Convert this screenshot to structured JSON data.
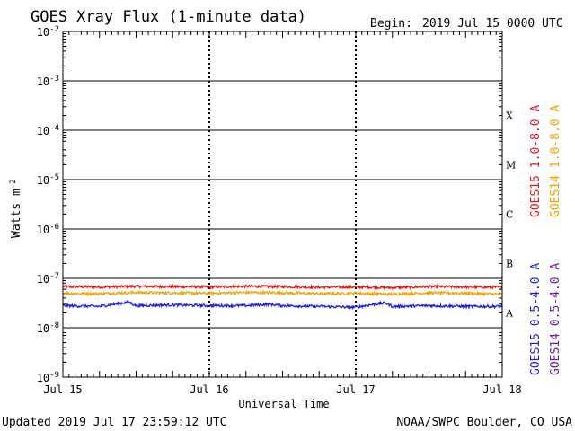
{
  "title": "GOES Xray Flux (1-minute data)",
  "begin_label": "Begin:",
  "begin_value": "2019 Jul 15 0000 UTC",
  "footer_left": "Updated 2019 Jul 17 23:59:12 UTC",
  "footer_right": "NOAA/SWPC Boulder, CO USA",
  "colors": {
    "goes15_long": "#e31a1c",
    "goes14_long": "#f5a300",
    "goes15_short": "#1f1fd6",
    "goes14_short": "#6a1fa0"
  },
  "chart_data": {
    "type": "line",
    "title": "GOES Xray Flux (1-minute data)",
    "xlabel": "Universal Time",
    "ylabel": "Watts m",
    "ylabel_sup": "-2",
    "yscale": "log",
    "ylim": [
      1e-09,
      0.01
    ],
    "xlim": [
      0,
      3
    ],
    "x_unit": "days since 2019 Jul 15 0000 UTC",
    "x_ticks": [
      {
        "x": 0,
        "label": "Jul 15"
      },
      {
        "x": 1,
        "label": "Jul 16"
      },
      {
        "x": 2,
        "label": "Jul 17"
      },
      {
        "x": 3,
        "label": "Jul 18"
      }
    ],
    "y_ticks": [
      {
        "base": "10",
        "exp": "-9"
      },
      {
        "base": "10",
        "exp": "-8"
      },
      {
        "base": "10",
        "exp": "-7"
      },
      {
        "base": "10",
        "exp": "-6"
      },
      {
        "base": "10",
        "exp": "-5"
      },
      {
        "base": "10",
        "exp": "-4"
      },
      {
        "base": "10",
        "exp": "-3"
      },
      {
        "base": "10",
        "exp": "-2"
      }
    ],
    "flare_classes": [
      {
        "label": "X",
        "y": 0.0002
      },
      {
        "label": "M",
        "y": 2e-05
      },
      {
        "label": "C",
        "y": 2e-06
      },
      {
        "label": "B",
        "y": 2e-07
      },
      {
        "label": "A",
        "y": 2e-08
      }
    ],
    "grid": true,
    "legend_placement": "right",
    "series": [
      {
        "name": "GOES15 1.0-8.0 A",
        "color": "#e31a1c",
        "base": 6.8e-08,
        "x": [
          0,
          0.25,
          0.5,
          0.75,
          1.0,
          1.25,
          1.5,
          1.75,
          2.0,
          2.25,
          2.5,
          2.75,
          3.0
        ],
        "values": [
          6.8e-08,
          6.7e-08,
          6.9e-08,
          6.8e-08,
          6.7e-08,
          6.9e-08,
          6.8e-08,
          6.6e-08,
          6.7e-08,
          6.5e-08,
          6.8e-08,
          6.7e-08,
          6.6e-08
        ]
      },
      {
        "name": "GOES14 1.0-8.0 A",
        "color": "#f5a300",
        "base": 5e-08,
        "x": [
          0,
          0.25,
          0.5,
          0.75,
          1.0,
          1.25,
          1.5,
          1.75,
          2.0,
          2.25,
          2.5,
          2.75,
          3.0
        ],
        "values": [
          5e-08,
          4.9e-08,
          5.2e-08,
          5.1e-08,
          5e-08,
          5.2e-08,
          5.1e-08,
          4.9e-08,
          5e-08,
          4.8e-08,
          5.1e-08,
          5e-08,
          4.8e-08
        ]
      },
      {
        "name": "GOES15 0.5-4.0 A",
        "color": "#1f1fd6",
        "base": 2.8e-08,
        "x": [
          0,
          0.25,
          0.45,
          0.5,
          0.75,
          1.0,
          1.25,
          1.4,
          1.5,
          1.75,
          2.0,
          2.2,
          2.25,
          2.5,
          2.75,
          3.0
        ],
        "values": [
          2.8e-08,
          2.7e-08,
          3.3e-08,
          2.8e-08,
          2.9e-08,
          2.8e-08,
          2.8e-08,
          3e-08,
          2.8e-08,
          2.7e-08,
          2.6e-08,
          3.2e-08,
          2.7e-08,
          2.8e-08,
          2.7e-08,
          2.7e-08
        ]
      }
    ],
    "legend": [
      {
        "text": "GOES15 1.0-8.0 A",
        "color": "#e31a1c"
      },
      {
        "text": "GOES14 1.0-8.0 A",
        "color": "#f5a300"
      },
      {
        "text": "GOES15 0.5-4.0 A",
        "color": "#1f1fd6"
      },
      {
        "text": "GOES14 0.5-4.0 A",
        "color": "#6a1fa0"
      }
    ]
  }
}
